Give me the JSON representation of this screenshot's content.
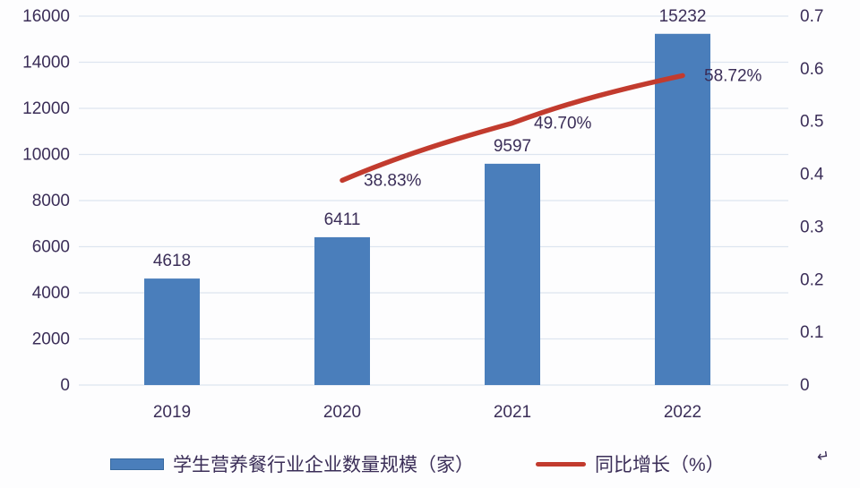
{
  "chart_data": {
    "type": "bar",
    "title": "",
    "xlabel": "",
    "ylabel": "",
    "categories": [
      "2019",
      "2020",
      "2021",
      "2022"
    ],
    "series": [
      {
        "name": "学生营养餐行业企业数量规模（家）",
        "type": "bar",
        "axis": "left",
        "color": "#4a7ebb",
        "values": [
          4618,
          6411,
          9597,
          15232
        ],
        "data_labels": [
          "4618",
          "6411",
          "9597",
          "15232"
        ]
      },
      {
        "name": "同比增长（%）",
        "type": "line",
        "axis": "right",
        "color": "#c23b2e",
        "values": [
          null,
          0.3883,
          0.497,
          0.5872
        ],
        "data_labels": [
          null,
          "38.83%",
          "49.70%",
          "58.72%"
        ]
      }
    ],
    "left_axis": {
      "min": 0,
      "max": 16000,
      "step": 2000,
      "ticks": [
        "0",
        "2000",
        "4000",
        "6000",
        "8000",
        "10000",
        "12000",
        "14000",
        "16000"
      ]
    },
    "right_axis": {
      "min": 0,
      "max": 0.7,
      "step": 0.1,
      "ticks": [
        "0",
        "0.1",
        "0.2",
        "0.3",
        "0.4",
        "0.5",
        "0.6",
        "0.7"
      ]
    },
    "grid": true,
    "legend_position": "bottom",
    "colors": {
      "bar": "#4a7ebb",
      "line": "#c23b2e",
      "text": "#3b2e58",
      "gridline": "#dde5f0",
      "background": "#fdfdfe"
    }
  },
  "legend": {
    "items": [
      {
        "label": "学生营养餐行业企业数量规模（家）",
        "swatch": "bar-swatch"
      },
      {
        "label": "同比增长（%）",
        "swatch": "line-swatch"
      }
    ]
  },
  "misc": {
    "return_mark": "↵"
  }
}
